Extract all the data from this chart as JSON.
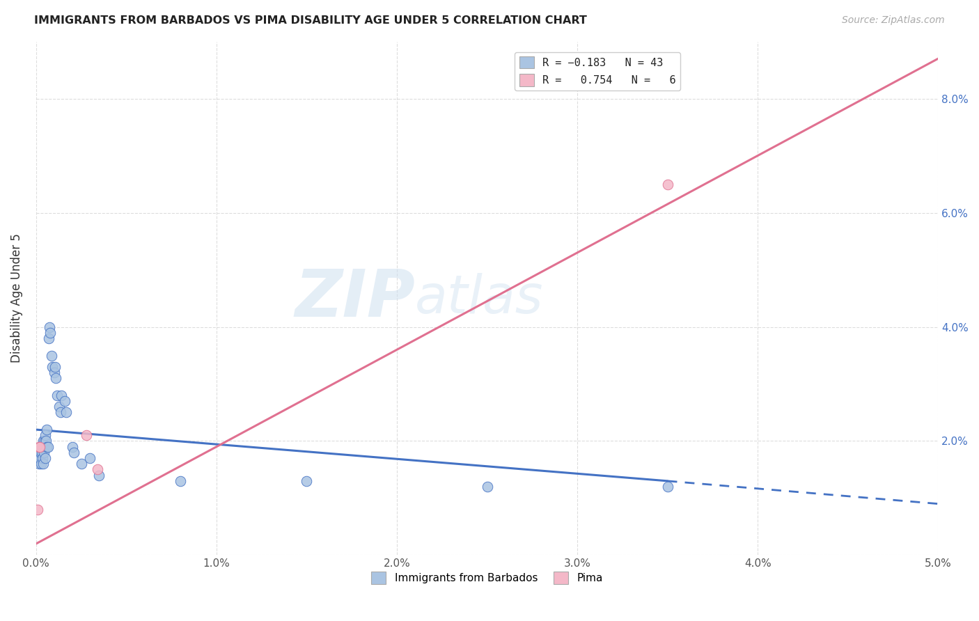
{
  "title": "IMMIGRANTS FROM BARBADOS VS PIMA DISABILITY AGE UNDER 5 CORRELATION CHART",
  "source": "Source: ZipAtlas.com",
  "xlabel": "",
  "ylabel": "Disability Age Under 5",
  "xlim": [
    0.0,
    0.05
  ],
  "ylim": [
    0.0,
    0.09
  ],
  "xticks": [
    0.0,
    0.01,
    0.02,
    0.03,
    0.04,
    0.05
  ],
  "yticks": [
    0.0,
    0.02,
    0.04,
    0.06,
    0.08
  ],
  "xticklabels": [
    "0.0%",
    "1.0%",
    "2.0%",
    "3.0%",
    "4.0%",
    "5.0%"
  ],
  "yticklabels_right": [
    "",
    "2.0%",
    "4.0%",
    "6.0%",
    "8.0%"
  ],
  "legend_label1": "Immigrants from Barbados",
  "legend_label2": "Pima",
  "color1": "#aac4e2",
  "color2": "#f4b8c8",
  "line_color1": "#4472c4",
  "line_color2": "#e07090",
  "watermark_zip": "ZIP",
  "watermark_atlas": "atlas",
  "scatter_barbados_x": [
    0.00015,
    0.00018,
    0.0002,
    0.00022,
    0.00025,
    0.00028,
    0.0003,
    0.00032,
    0.00035,
    0.00038,
    0.0004,
    0.00042,
    0.00045,
    0.00048,
    0.0005,
    0.00052,
    0.00055,
    0.00058,
    0.0006,
    0.00065,
    0.0007,
    0.00075,
    0.0008,
    0.00085,
    0.0009,
    0.001,
    0.00105,
    0.0011,
    0.00115,
    0.0013,
    0.00135,
    0.0014,
    0.0016,
    0.00165,
    0.002,
    0.0021,
    0.0025,
    0.003,
    0.0035,
    0.008,
    0.015,
    0.025,
    0.035
  ],
  "scatter_barbados_y": [
    0.018,
    0.016,
    0.017,
    0.019,
    0.018,
    0.016,
    0.019,
    0.018,
    0.017,
    0.016,
    0.02,
    0.019,
    0.018,
    0.02,
    0.017,
    0.021,
    0.02,
    0.019,
    0.022,
    0.019,
    0.038,
    0.04,
    0.039,
    0.035,
    0.033,
    0.032,
    0.033,
    0.031,
    0.028,
    0.026,
    0.025,
    0.028,
    0.027,
    0.025,
    0.019,
    0.018,
    0.016,
    0.017,
    0.014,
    0.013,
    0.013,
    0.012,
    0.012
  ],
  "scatter_pima_x": [
    8e-05,
    0.00015,
    0.00022,
    0.0028,
    0.0034,
    0.035
  ],
  "scatter_pima_y": [
    0.008,
    0.019,
    0.019,
    0.021,
    0.015,
    0.065
  ],
  "trendline_barbados_x0": 0.0,
  "trendline_barbados_x1": 0.035,
  "trendline_barbados_xdash": 0.05,
  "trendline_barbados_y0": 0.022,
  "trendline_barbados_y1": 0.013,
  "trendline_barbados_ydash": 0.009,
  "trendline_pima_x0": 0.0,
  "trendline_pima_x1": 0.05,
  "trendline_pima_y0": 0.002,
  "trendline_pima_y1": 0.087
}
